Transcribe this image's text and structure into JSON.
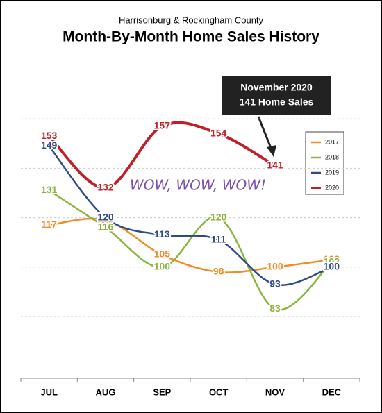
{
  "chart_data": {
    "type": "line",
    "subtitle": "Harrisonburg & Rockingham County",
    "title": "Month-By-Month Home Sales History",
    "categories": [
      "JUL",
      "AUG",
      "SEP",
      "OCT",
      "NOV",
      "DEC"
    ],
    "series": [
      {
        "name": "2017",
        "color": "#f28c28",
        "values": [
          117,
          119,
          105,
          98,
          100,
          103
        ]
      },
      {
        "name": "2018",
        "color": "#8cb33a",
        "values": [
          131,
          116,
          100,
          120,
          83,
          102
        ]
      },
      {
        "name": "2019",
        "color": "#2e4a8a",
        "values": [
          149,
          120,
          113,
          111,
          93,
          100
        ]
      },
      {
        "name": "2020",
        "color": "#c0202a",
        "values": [
          153,
          132,
          157,
          154,
          141,
          null
        ]
      }
    ],
    "ylim": [
      55,
      180
    ],
    "yticks": [
      80,
      100,
      120,
      140,
      160
    ],
    "grid": true,
    "annotations": {
      "callout": [
        "November 2020",
        "141 Home Sales"
      ],
      "note": "WOW, WOW, WOW!"
    }
  }
}
